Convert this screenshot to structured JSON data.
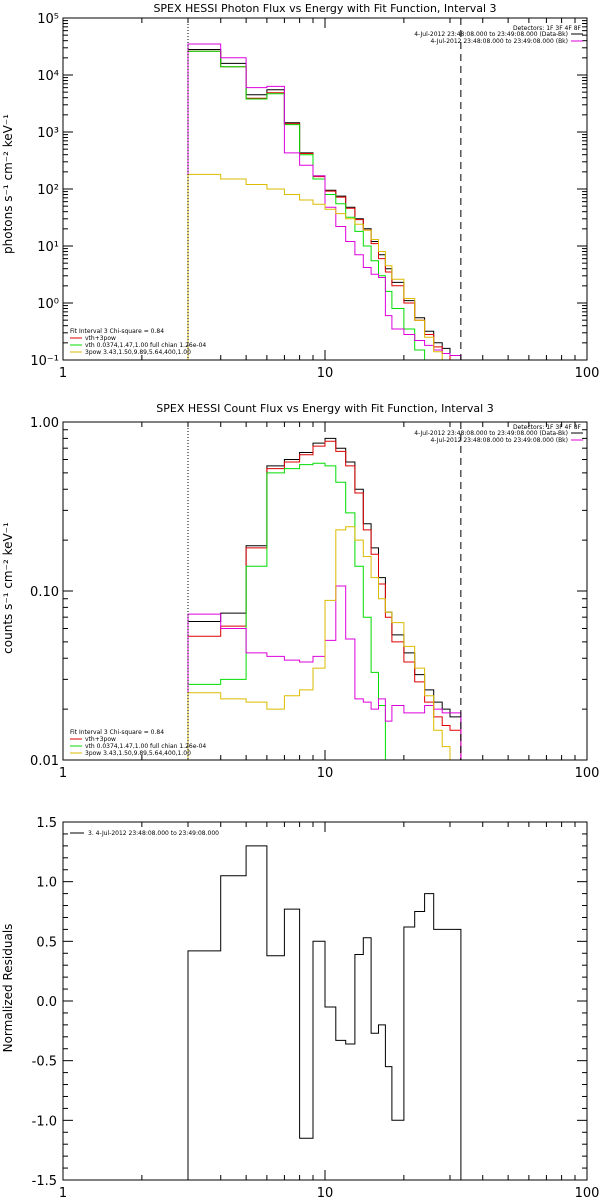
{
  "chart_data": [
    {
      "type": "line",
      "title": "SPEX HESSI Photon Flux vs Energy with Fit Function, Interval 3",
      "xlabel": "",
      "ylabel": "photons s⁻¹ cm⁻² keV⁻¹",
      "xscale": "log",
      "yscale": "log",
      "xlim": [
        1,
        100
      ],
      "ylim": [
        0.1,
        100000
      ],
      "x_tick_labels": [
        "1",
        "10",
        "100"
      ],
      "y_tick_labels": [
        "10⁻¹",
        "10⁰",
        "10¹",
        "10²",
        "10³",
        "10⁴",
        "10⁵"
      ],
      "fit_range_low": 3,
      "fit_range_high": 33,
      "legend_top": {
        "position": "top-right",
        "lines": [
          "Detectors: 1F 3F 4F 8F",
          "4-Jul-2012 23:48:08.000 to 23:49:08.000 (Data-Bk)",
          "4-Jul-2012 23:48:08.000 to 23:49:08.000 (Bk)"
        ]
      },
      "legend_bottom": {
        "position": "bottom-left",
        "lines": [
          "Fit Interval 3   Chi-square = 0.84",
          "vth+3pow",
          "vth 0.0374,1.47,1.00  full chian 1.26e-04",
          "3pow 3.43,1.50,9.89,5.64,400,1.00"
        ]
      },
      "edges": [
        3,
        4,
        5,
        6,
        7,
        8,
        9,
        10,
        11,
        12,
        13,
        14,
        15,
        16,
        17,
        18,
        20,
        22,
        24,
        26,
        28,
        30,
        33
      ],
      "series": [
        {
          "color": "#000000",
          "values": [
            28000,
            16000,
            4500,
            5500,
            1450,
            430,
            170,
            95,
            75,
            48,
            30,
            20,
            12,
            7,
            4,
            2.3,
            1.1,
            0.55,
            0.32,
            0.2,
            0.16,
            0.12
          ]
        },
        {
          "color": "#dd0000",
          "values": [
            26000,
            14000,
            3900,
            4900,
            1400,
            420,
            165,
            92,
            72,
            46,
            29,
            19,
            11,
            6,
            3.5,
            2,
            1,
            0.5,
            0.28,
            0.17,
            0.13,
            0.1
          ]
        },
        {
          "color": "#00dd00",
          "values": [
            26000,
            14000,
            3800,
            4700,
            1350,
            400,
            150,
            80,
            55,
            32,
            18,
            10,
            5.5,
            3,
            1.6,
            0.8,
            0.35,
            0.15
          ]
        },
        {
          "color": "#dd00dd",
          "values": [
            35000,
            20000,
            6000,
            6300,
            430,
            260,
            170,
            48,
            22,
            12,
            7,
            4.2,
            3.2,
            2.8,
            0.6,
            0.35,
            0.28,
            0.22,
            0.18,
            0.15,
            0.13,
            0.12
          ]
        },
        {
          "color": "#ddbb00",
          "values": [
            180,
            150,
            120,
            100,
            80,
            64,
            54,
            44,
            37,
            30,
            24,
            19,
            13,
            8,
            4.5,
            2.6,
            1.2,
            0.5,
            0.25,
            0.14,
            0.1,
            0.08
          ]
        }
      ]
    },
    {
      "type": "line",
      "title": "SPEX HESSI Count Flux vs Energy with Fit Function, Interval 3",
      "xlabel": "",
      "ylabel": "counts s⁻¹ cm⁻² keV⁻¹",
      "xscale": "log",
      "yscale": "log",
      "xlim": [
        1,
        100
      ],
      "ylim": [
        0.01,
        1.0
      ],
      "x_tick_labels": [
        "1",
        "10",
        "100"
      ],
      "y_tick_labels": [
        "0.01",
        "0.10",
        "1.00"
      ],
      "fit_range_low": 3,
      "fit_range_high": 33,
      "legend_top": {
        "position": "top-right",
        "lines": [
          "Detectors: 1F 3F 4F 8F",
          "4-Jul-2012 23:48:08.000 to 23:49:08.000 (Data-Bk)",
          "4-Jul-2012 23:48:08.000 to 23:49:08.000 (Bk)"
        ]
      },
      "legend_bottom": {
        "position": "bottom-left",
        "lines": [
          "Fit Interval 3   Chi-square = 0.84",
          "vth+3pow",
          "vth 0.0374,1.47,1.00  full chian 1.26e-04",
          "3pow 3.43,1.50,9.89,5.64,400,1.00"
        ]
      },
      "edges": [
        3,
        4,
        5,
        6,
        7,
        8,
        9,
        10,
        11,
        12,
        13,
        14,
        15,
        16,
        17,
        18,
        20,
        22,
        24,
        26,
        28,
        30,
        33
      ],
      "series": [
        {
          "color": "#000000",
          "values": [
            0.066,
            0.074,
            0.185,
            0.55,
            0.6,
            0.66,
            0.75,
            0.8,
            0.7,
            0.58,
            0.4,
            0.25,
            0.18,
            0.12,
            0.075,
            0.055,
            0.043,
            0.032,
            0.026,
            0.022,
            0.02,
            0.018
          ]
        },
        {
          "color": "#dd0000",
          "values": [
            0.054,
            0.062,
            0.18,
            0.53,
            0.58,
            0.64,
            0.72,
            0.77,
            0.67,
            0.55,
            0.38,
            0.23,
            0.165,
            0.11,
            0.07,
            0.05,
            0.038,
            0.029,
            0.022,
            0.018,
            0.016,
            0.015
          ]
        },
        {
          "color": "#00dd00",
          "values": [
            0.028,
            0.03,
            0.14,
            0.5,
            0.53,
            0.56,
            0.57,
            0.55,
            0.44,
            0.29,
            0.14,
            0.07,
            0.033,
            0.021,
            0.01,
            0.005
          ]
        },
        {
          "color": "#dd00dd",
          "values": [
            0.073,
            0.06,
            0.043,
            0.041,
            0.039,
            0.038,
            0.041,
            0.051,
            0.107,
            0.052,
            0.023,
            0.022,
            0.02,
            0.023,
            0.017,
            0.021,
            0.019,
            0.019,
            0.021,
            0.02,
            0.019,
            0.019
          ]
        },
        {
          "color": "#ddbb00",
          "values": [
            0.025,
            0.023,
            0.022,
            0.02,
            0.024,
            0.026,
            0.035,
            0.088,
            0.23,
            0.24,
            0.2,
            0.16,
            0.12,
            0.09,
            0.075,
            0.065,
            0.047,
            0.035,
            0.024,
            0.015,
            0.012,
            0.01
          ]
        }
      ]
    },
    {
      "type": "line",
      "title": "",
      "xlabel": "",
      "ylabel": "Normalized Residuals",
      "xscale": "log",
      "yscale": "linear",
      "xlim": [
        1,
        100
      ],
      "ylim": [
        -1.5,
        1.5
      ],
      "x_tick_labels": [
        "1",
        "10",
        "100"
      ],
      "y_tick_labels": [
        "-1.5",
        "-1.0",
        "-0.5",
        "0.0",
        "0.5",
        "1.0",
        "1.5"
      ],
      "legend": {
        "position": "top-left",
        "lines": [
          "3.  4-Jul-2012 23:48:08.000 to 23:49:08.000"
        ]
      },
      "edges": [
        3,
        4,
        5,
        6,
        7,
        8,
        9,
        10,
        11,
        12,
        13,
        14,
        15,
        16,
        17,
        18,
        20,
        22,
        24,
        26,
        28,
        30,
        33
      ],
      "series": [
        {
          "color": "#000000",
          "values": [
            0.42,
            1.05,
            1.3,
            0.38,
            0.77,
            -1.15,
            0.5,
            -0.05,
            -0.33,
            -0.36,
            0.39,
            0.53,
            -0.27,
            -0.2,
            -0.55,
            -1.0,
            0.62,
            0.75,
            0.9,
            0.6,
            0.6,
            0.6
          ]
        }
      ]
    }
  ]
}
